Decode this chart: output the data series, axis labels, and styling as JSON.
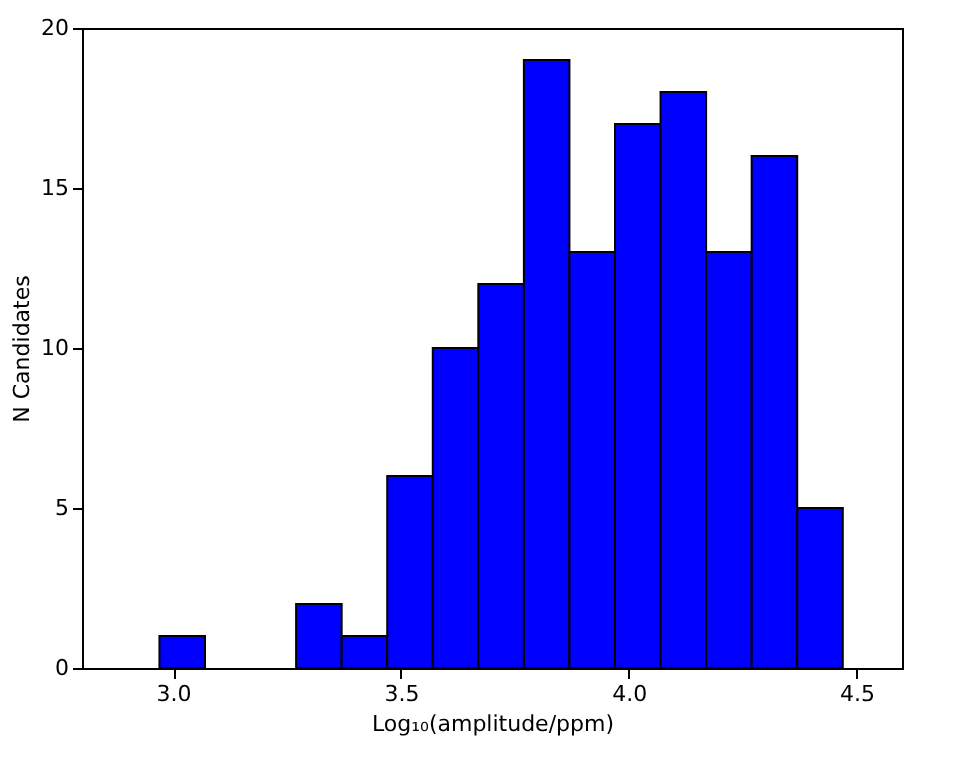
{
  "chart_data": {
    "type": "histogram",
    "xlabel": "Log₁₀(amplitude/ppm)",
    "ylabel": "N Candidates",
    "bins": [
      2.97,
      3.07,
      3.17,
      3.27,
      3.37,
      3.47,
      3.57,
      3.67,
      3.77,
      3.87,
      3.97,
      4.07,
      4.17,
      4.27,
      4.37,
      4.47
    ],
    "values": [
      1,
      0,
      0,
      2,
      1,
      6,
      10,
      12,
      19,
      13,
      17,
      18,
      13,
      16,
      5
    ],
    "color": "#0000ff",
    "xlim": [
      2.8,
      4.6
    ],
    "xticks": [
      {
        "value": 3.0,
        "label": "3.0"
      },
      {
        "value": 3.5,
        "label": "3.5"
      },
      {
        "value": 4.0,
        "label": "4.0"
      },
      {
        "value": 4.5,
        "label": "4.5"
      }
    ],
    "ylim": [
      0,
      20
    ],
    "yticks": [
      0,
      5,
      10,
      15,
      20
    ],
    "grid": false
  }
}
